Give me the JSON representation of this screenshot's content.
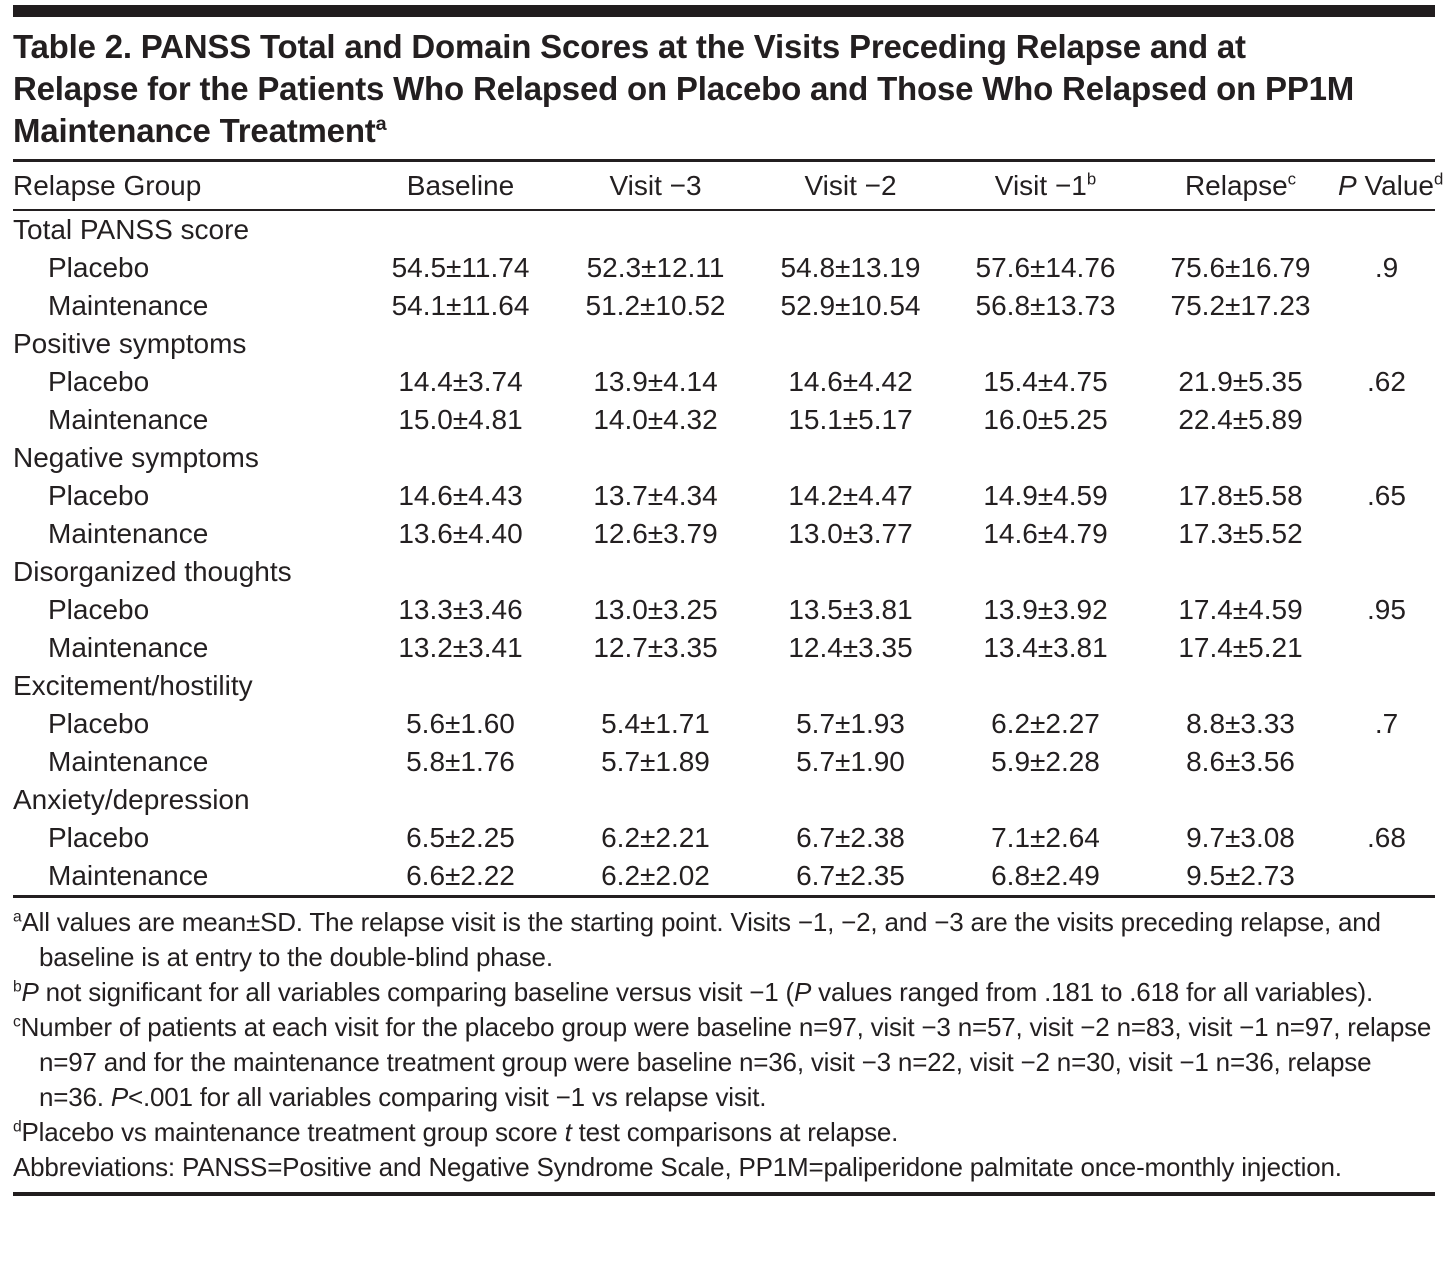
{
  "title": {
    "lines": [
      "Table 2. PANSS Total and Domain Scores at the Visits Preceding Relapse and at",
      "Relapse for the Patients Who Relapsed on Placebo and Those Who Relapsed on PP1M",
      "Maintenance Treatment"
    ],
    "superscript": "a"
  },
  "table": {
    "header": [
      {
        "name": "relapse-group",
        "segments": [
          {
            "text": "Relapse Group"
          }
        ],
        "sup": ""
      },
      {
        "name": "baseline",
        "segments": [
          {
            "text": "Baseline"
          }
        ],
        "sup": ""
      },
      {
        "name": "visit-3",
        "segments": [
          {
            "text": "Visit −3"
          }
        ],
        "sup": ""
      },
      {
        "name": "visit-2",
        "segments": [
          {
            "text": "Visit −2"
          }
        ],
        "sup": ""
      },
      {
        "name": "visit-1",
        "segments": [
          {
            "text": "Visit −1"
          }
        ],
        "sup": "b"
      },
      {
        "name": "relapse",
        "segments": [
          {
            "text": "Relapse"
          }
        ],
        "sup": "c"
      },
      {
        "name": "p-value",
        "segments": [
          {
            "text": "P",
            "italic": true
          },
          {
            "text": " Value"
          }
        ],
        "sup": "d"
      }
    ],
    "sections": [
      {
        "label": "Total PANSS score",
        "rows": [
          {
            "group": "Placebo",
            "values": [
              "54.5±11.74",
              "52.3±12.11",
              "54.8±13.19",
              "57.6±14.76",
              "75.6±16.79"
            ],
            "p_value": ".9"
          },
          {
            "group": "Maintenance",
            "values": [
              "54.1±11.64",
              "51.2±10.52",
              "52.9±10.54",
              "56.8±13.73",
              "75.2±17.23"
            ],
            "p_value": ""
          }
        ]
      },
      {
        "label": "Positive symptoms",
        "rows": [
          {
            "group": "Placebo",
            "values": [
              "14.4±3.74",
              "13.9±4.14",
              "14.6±4.42",
              "15.4±4.75",
              "21.9±5.35"
            ],
            "p_value": ".62"
          },
          {
            "group": "Maintenance",
            "values": [
              "15.0±4.81",
              "14.0±4.32",
              "15.1±5.17",
              "16.0±5.25",
              "22.4±5.89"
            ],
            "p_value": ""
          }
        ]
      },
      {
        "label": "Negative symptoms",
        "rows": [
          {
            "group": "Placebo",
            "values": [
              "14.6±4.43",
              "13.7±4.34",
              "14.2±4.47",
              "14.9±4.59",
              "17.8±5.58"
            ],
            "p_value": ".65"
          },
          {
            "group": "Maintenance",
            "values": [
              "13.6±4.40",
              "12.6±3.79",
              "13.0±3.77",
              "14.6±4.79",
              "17.3±5.52"
            ],
            "p_value": ""
          }
        ]
      },
      {
        "label": "Disorganized thoughts",
        "rows": [
          {
            "group": "Placebo",
            "values": [
              "13.3±3.46",
              "13.0±3.25",
              "13.5±3.81",
              "13.9±3.92",
              "17.4±4.59"
            ],
            "p_value": ".95"
          },
          {
            "group": "Maintenance",
            "values": [
              "13.2±3.41",
              "12.7±3.35",
              "12.4±3.35",
              "13.4±3.81",
              "17.4±5.21"
            ],
            "p_value": ""
          }
        ]
      },
      {
        "label": "Excitement/hostility",
        "rows": [
          {
            "group": "Placebo",
            "values": [
              "5.6±1.60",
              "5.4±1.71",
              "5.7±1.93",
              "6.2±2.27",
              "8.8±3.33"
            ],
            "p_value": ".7"
          },
          {
            "group": "Maintenance",
            "values": [
              "5.8±1.76",
              "5.7±1.89",
              "5.7±1.90",
              "5.9±2.28",
              "8.6±3.56"
            ],
            "p_value": ""
          }
        ]
      },
      {
        "label": "Anxiety/depression",
        "rows": [
          {
            "group": "Placebo",
            "values": [
              "6.5±2.25",
              "6.2±2.21",
              "6.7±2.38",
              "7.1±2.64",
              "9.7±3.08"
            ],
            "p_value": ".68"
          },
          {
            "group": "Maintenance",
            "values": [
              "6.6±2.22",
              "6.2±2.02",
              "6.7±2.35",
              "6.8±2.49",
              "9.5±2.73"
            ],
            "p_value": ""
          }
        ]
      }
    ]
  },
  "footnotes": [
    {
      "sup": "a",
      "segments": [
        {
          "text": "All values are mean±SD. The relapse visit is the starting point. Visits −1, −2, and −3 are the visits preceding relapse, and baseline is at entry to the double-blind phase."
        }
      ]
    },
    {
      "sup": "b",
      "segments": [
        {
          "text": "P",
          "italic": true
        },
        {
          "text": " not significant for all variables comparing baseline versus visit −1 ("
        },
        {
          "text": "P",
          "italic": true
        },
        {
          "text": " values ranged from .181 to .618 for all variables)."
        }
      ]
    },
    {
      "sup": "c",
      "segments": [
        {
          "text": "Number of patients at each visit for the placebo group were baseline n=97, visit −3 n=57, visit −2 n=83, visit −1 n=97, relapse n=97 and for the maintenance treatment group were baseline n=36, visit −3 n=22, visit −2 n=30, visit −1 n=36, relapse n=36. "
        },
        {
          "text": "P",
          "italic": true
        },
        {
          "text": "<.001 for all variables comparing visit −1 vs relapse visit."
        }
      ]
    },
    {
      "sup": "d",
      "segments": [
        {
          "text": "Placebo vs maintenance treatment group score "
        },
        {
          "text": "t",
          "italic": true
        },
        {
          "text": " test comparisons at relapse."
        }
      ]
    },
    {
      "sup": "",
      "segments": [
        {
          "text": "Abbreviations: PANSS=Positive and Negative Syndrome Scale, PP1M=paliperidone palmitate once-monthly injection."
        }
      ]
    }
  ],
  "colors": {
    "text": "#231f20",
    "rule": "#231f20",
    "top_bar": "#211d1e",
    "background": "#ffffff"
  }
}
